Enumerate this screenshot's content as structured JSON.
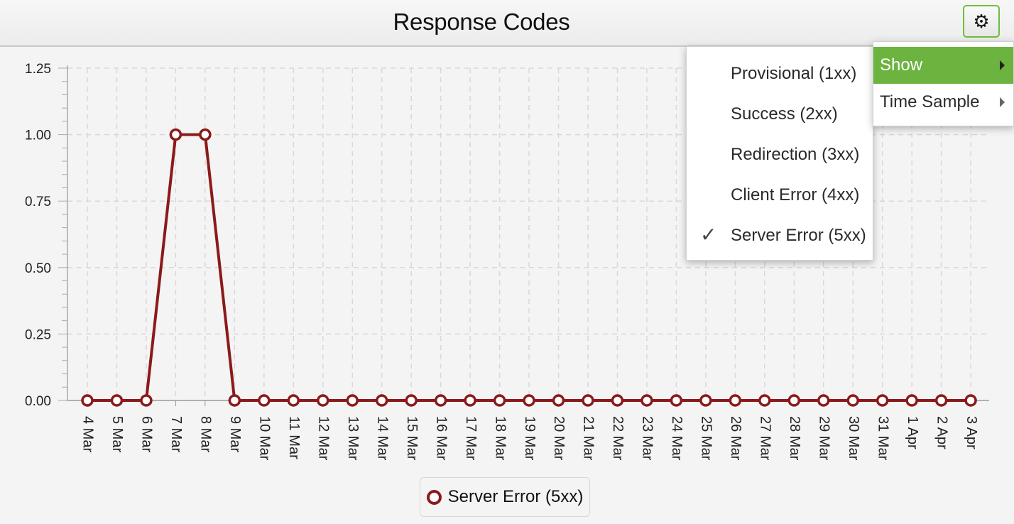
{
  "header": {
    "title": "Response Codes",
    "settings_icon": "gear-icon"
  },
  "menu": {
    "items": [
      {
        "label": "Show",
        "active": true,
        "icon": "chevron-right-icon"
      },
      {
        "label": "Time Sample",
        "active": false,
        "icon": "chevron-right-icon"
      }
    ],
    "show_submenu": [
      {
        "label": "Provisional (1xx)",
        "checked": false
      },
      {
        "label": "Success (2xx)",
        "checked": false
      },
      {
        "label": "Redirection (3xx)",
        "checked": false
      },
      {
        "label": "Client Error (4xx)",
        "checked": false
      },
      {
        "label": "Server Error (5xx)",
        "checked": true
      }
    ],
    "check_glyph": "✓",
    "active_color": "#6cb33f"
  },
  "legend": {
    "label": "Server Error (5xx)",
    "color": "#8b1a1a"
  },
  "chart_data": {
    "type": "line",
    "categories": [
      "4 Mar",
      "5 Mar",
      "6 Mar",
      "7 Mar",
      "8 Mar",
      "9 Mar",
      "10 Mar",
      "11 Mar",
      "12 Mar",
      "13 Mar",
      "14 Mar",
      "15 Mar",
      "16 Mar",
      "17 Mar",
      "18 Mar",
      "19 Mar",
      "20 Mar",
      "21 Mar",
      "22 Mar",
      "23 Mar",
      "24 Mar",
      "25 Mar",
      "26 Mar",
      "27 Mar",
      "28 Mar",
      "29 Mar",
      "30 Mar",
      "31 Mar",
      "1 Apr",
      "2 Apr",
      "3 Apr"
    ],
    "series": [
      {
        "name": "Server Error (5xx)",
        "color": "#8b1a1a",
        "values": [
          0,
          0,
          0,
          1,
          1,
          0,
          0,
          0,
          0,
          0,
          0,
          0,
          0,
          0,
          0,
          0,
          0,
          0,
          0,
          0,
          0,
          0,
          0,
          0,
          0,
          0,
          0,
          0,
          0,
          0,
          0
        ]
      }
    ],
    "yticks": [
      "0.00",
      "0.25",
      "0.50",
      "0.75",
      "1.00",
      "1.25"
    ],
    "ylim": [
      0,
      1.25
    ],
    "title": "Response Codes",
    "xlabel": "",
    "ylabel": "",
    "grid": true,
    "legend_position": "bottom-center"
  }
}
